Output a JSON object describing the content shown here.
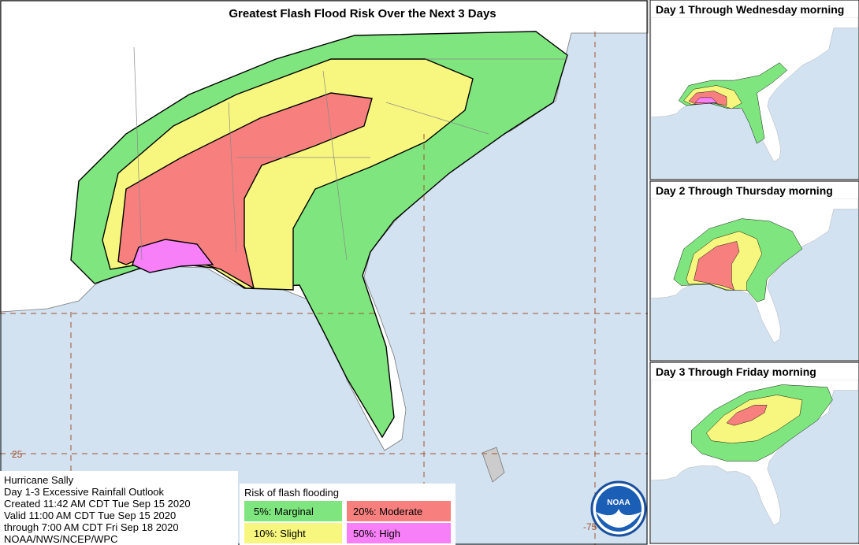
{
  "map": {
    "title": "Greatest Flash Flood Risk Over the Next 3 Days",
    "latitude_label": "25",
    "longitude_label": "-75"
  },
  "panels": [
    {
      "title": "Day 1 Through Wednesday morning"
    },
    {
      "title": "Day 2 Through Thursday morning"
    },
    {
      "title": "Day 3 Through Friday morning"
    }
  ],
  "info": {
    "lines": [
      "Hurricane Sally",
      "Day 1-3 Excessive Rainfall Outlook",
      "Created 11:42 AM CDT Tue Sep 15 2020",
      "Valid 11:00 AM CDT Tue Sep 15 2020",
      "through 7:00 AM CDT Fri Sep 18 2020",
      "NOAA/NWS/NCEP/WPC"
    ]
  },
  "legend": {
    "title": "Risk of flash flooding",
    "items": [
      {
        "label": "5%: Marginal",
        "color": "#7fe67f"
      },
      {
        "label": "10%: Slight",
        "color": "#f7f77f"
      },
      {
        "label": "20%: Moderate",
        "color": "#f7807f"
      },
      {
        "label": "50%: High",
        "color": "#f77ff7"
      }
    ]
  },
  "logo": "NOAA"
}
